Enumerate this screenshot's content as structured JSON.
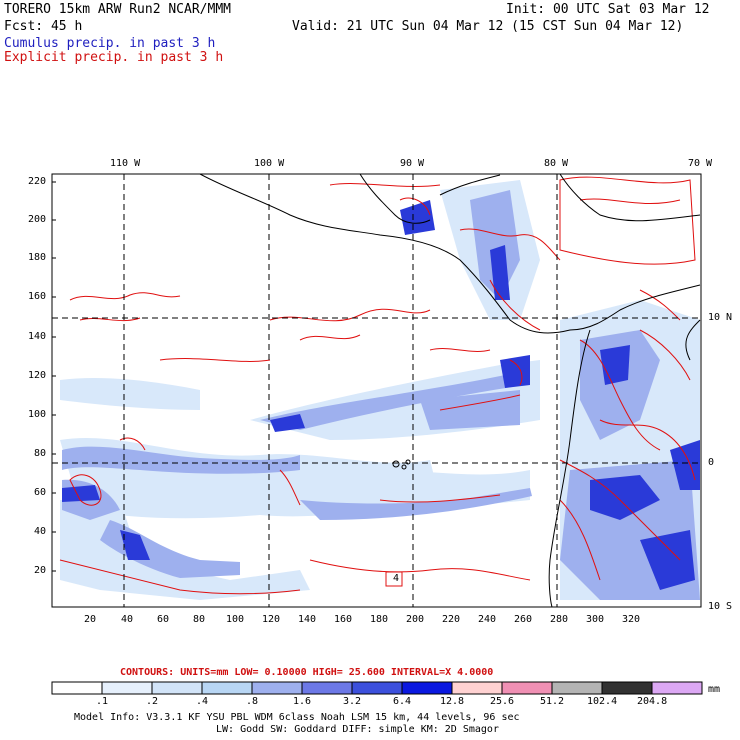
{
  "header": {
    "line1_left": "TORERO  15km ARW   Run2    NCAR/MMM",
    "line1_right": "Init: 00 UTC Sat 03 Mar 12",
    "line2_left": "Fcst:   45 h",
    "line2_right": "Valid: 21 UTC Sun 04 Mar 12 (15 CST Sun 04 Mar 12)",
    "line3": "Cumulus precip. in past 3 h",
    "line4": "Explicit precip. in past 3 h"
  },
  "map": {
    "lon_labels": [
      "110 W",
      "100 W",
      "90 W",
      "80 W",
      "70 W"
    ],
    "lat_labels": [
      "10 N",
      "0",
      "10 S"
    ],
    "y_ticks": [
      "220",
      "200",
      "180",
      "160",
      "140",
      "120",
      "100",
      "80",
      "60",
      "40",
      "20"
    ],
    "x_ticks": [
      "20",
      "40",
      "60",
      "80",
      "100",
      "120",
      "140",
      "160",
      "180",
      "200",
      "220",
      "240",
      "260",
      "280",
      "300",
      "320"
    ],
    "highlight_box": "4"
  },
  "contours": {
    "label": "CONTOURS:  UNITS=mm  LOW= 0.10000     HIGH=  25.600     INTERVAL=X  4.0000"
  },
  "colorbar": {
    "colors": [
      "#ffffff",
      "#e6f0fc",
      "#d2e4f8",
      "#b8d6f4",
      "#9eb0ee",
      "#6c78e6",
      "#3c50dc",
      "#0a18e0",
      "#ffd2d2",
      "#f090b4",
      "#b4b4b4",
      "#323232",
      "#dca8f4"
    ],
    "labels": [
      ".1",
      ".2",
      ".4",
      ".8",
      "1.6",
      "3.2",
      "6.4",
      "12.8",
      "25.6",
      "51.2",
      "102.4",
      "204.8"
    ],
    "unit": "mm"
  },
  "model_info": {
    "line1": "Model Info: V3.3.1   KF      YSU PBL  WDM 6class  Noah LSM  15 km,    44 levels,    96 sec",
    "line2": "LW: Godd SW: Goddard DIFF: simple KM: 2D Smagor"
  }
}
